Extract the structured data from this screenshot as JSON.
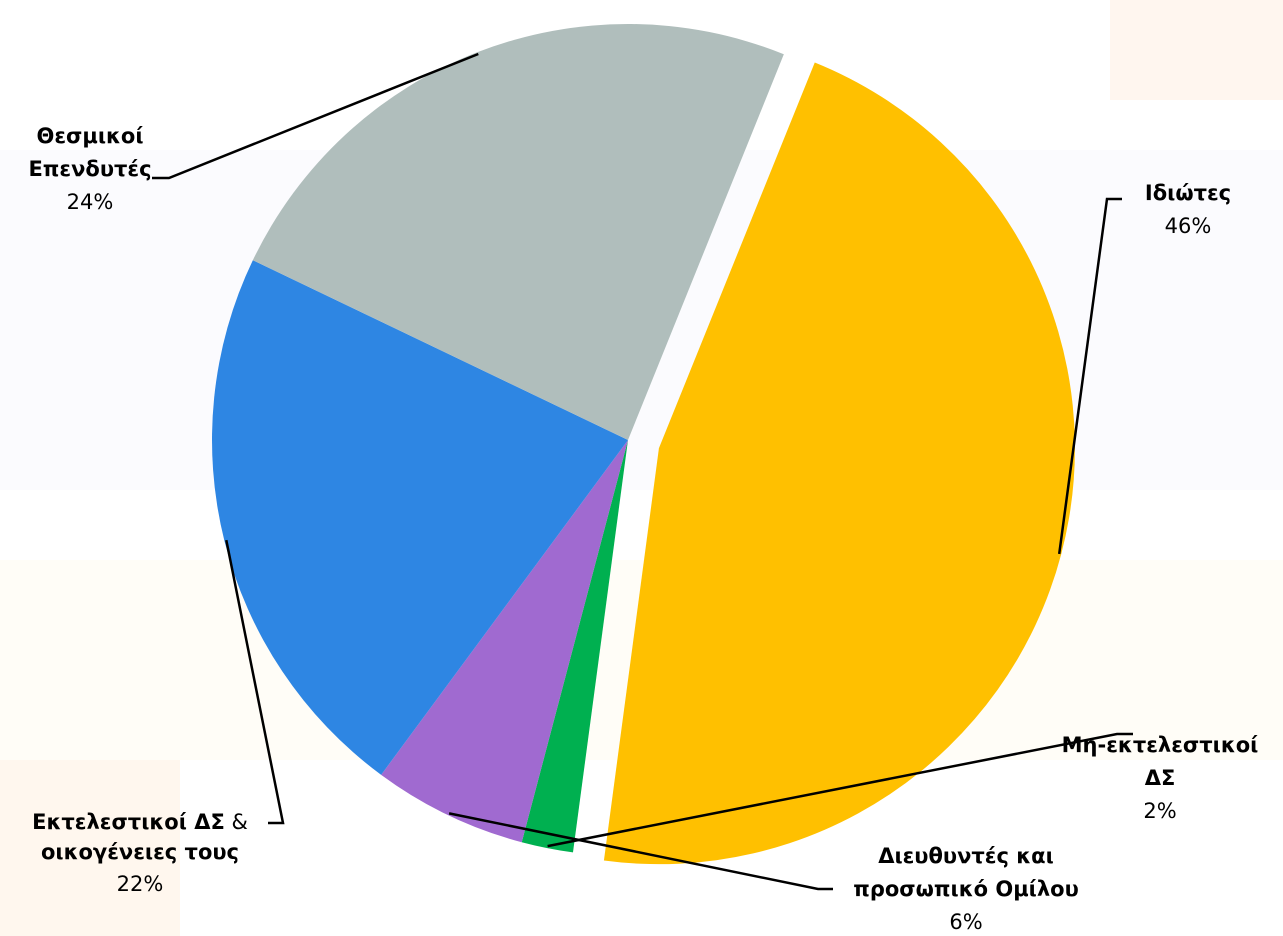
{
  "chart_data": {
    "type": "pie",
    "title": "",
    "legend": "none",
    "start_angle_deg": 22,
    "direction": "clockwise",
    "exploded_slice": 0,
    "slices": [
      {
        "line1": "Ιδιώτες",
        "line1_suffix": "",
        "line2": "",
        "pct_label": "46%",
        "value": 46,
        "color": "#FFC000"
      },
      {
        "line1": "Μη-εκτελεστικοί",
        "line1_suffix": "",
        "line2": "ΔΣ",
        "pct_label": "2%",
        "value": 2,
        "color": "#00B050"
      },
      {
        "line1": "Διευθυντές και",
        "line1_suffix": "",
        "line2": "προσωπικό Ομίλου",
        "pct_label": "6%",
        "value": 6,
        "color": "#A06AD0"
      },
      {
        "line1": "Εκτελεστικοί ΔΣ",
        "line1_suffix": " &",
        "line2": "οικογένειες τους",
        "pct_label": "22%",
        "value": 22,
        "color": "#2E86E3"
      },
      {
        "line1": "Θεσμικοί",
        "line1_suffix": "",
        "line2": "Επενδυτές",
        "pct_label": "24%",
        "value": 24,
        "color": "#B0BEBC"
      }
    ]
  }
}
